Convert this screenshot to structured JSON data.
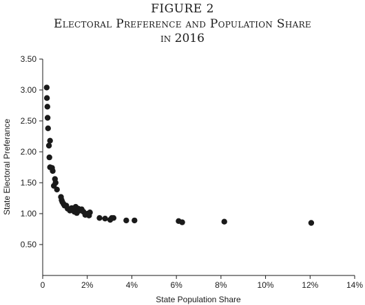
{
  "chart_data": {
    "type": "scatter",
    "title_lines": [
      "FIGURE 2",
      "Electoral Preference and Population Share",
      "in 2016"
    ],
    "xlabel": "State Population Share",
    "ylabel": "State Electoral Preferance",
    "xlim": [
      0,
      14
    ],
    "ylim": [
      0,
      3.5
    ],
    "x_ticks": [
      0,
      2,
      4,
      6,
      8,
      10,
      12,
      14
    ],
    "x_tick_labels": [
      "0",
      "2%",
      "4%",
      "6%",
      "8%",
      "10%",
      "12%",
      "14%"
    ],
    "y_ticks": [
      0.5,
      1.0,
      1.5,
      2.0,
      2.5,
      3.0,
      3.5
    ],
    "y_tick_labels": [
      "0.50",
      "1.00",
      "1.50",
      "2.00",
      "2.50",
      "3.00",
      "3.50"
    ],
    "grid": false,
    "color": "#1a1a1a",
    "points": [
      [
        0.18,
        3.04
      ],
      [
        0.19,
        2.87
      ],
      [
        0.21,
        2.73
      ],
      [
        0.22,
        2.55
      ],
      [
        0.24,
        2.38
      ],
      [
        0.28,
        2.1
      ],
      [
        0.33,
        2.18
      ],
      [
        0.3,
        1.91
      ],
      [
        0.33,
        1.75
      ],
      [
        0.42,
        1.74
      ],
      [
        0.45,
        1.69
      ],
      [
        0.5,
        1.45
      ],
      [
        0.55,
        1.56
      ],
      [
        0.58,
        1.5
      ],
      [
        0.64,
        1.39
      ],
      [
        0.82,
        1.27
      ],
      [
        0.85,
        1.22
      ],
      [
        0.88,
        1.19
      ],
      [
        0.93,
        1.16
      ],
      [
        0.98,
        1.13
      ],
      [
        1.06,
        1.13
      ],
      [
        1.12,
        1.08
      ],
      [
        1.22,
        1.05
      ],
      [
        1.3,
        1.09
      ],
      [
        1.34,
        1.07
      ],
      [
        1.42,
        1.03
      ],
      [
        1.48,
        1.11
      ],
      [
        1.53,
        1.01
      ],
      [
        1.6,
        1.08
      ],
      [
        1.66,
        1.05
      ],
      [
        1.75,
        1.07
      ],
      [
        1.83,
        1.03
      ],
      [
        1.91,
        0.98
      ],
      [
        2.02,
        1.0
      ],
      [
        2.08,
        0.97
      ],
      [
        2.12,
        1.02
      ],
      [
        2.55,
        0.93
      ],
      [
        2.8,
        0.92
      ],
      [
        3.03,
        0.9
      ],
      [
        3.1,
        0.93
      ],
      [
        3.18,
        0.93
      ],
      [
        3.75,
        0.89
      ],
      [
        4.12,
        0.89
      ],
      [
        6.1,
        0.88
      ],
      [
        6.26,
        0.86
      ],
      [
        8.15,
        0.87
      ],
      [
        12.05,
        0.85
      ]
    ]
  }
}
